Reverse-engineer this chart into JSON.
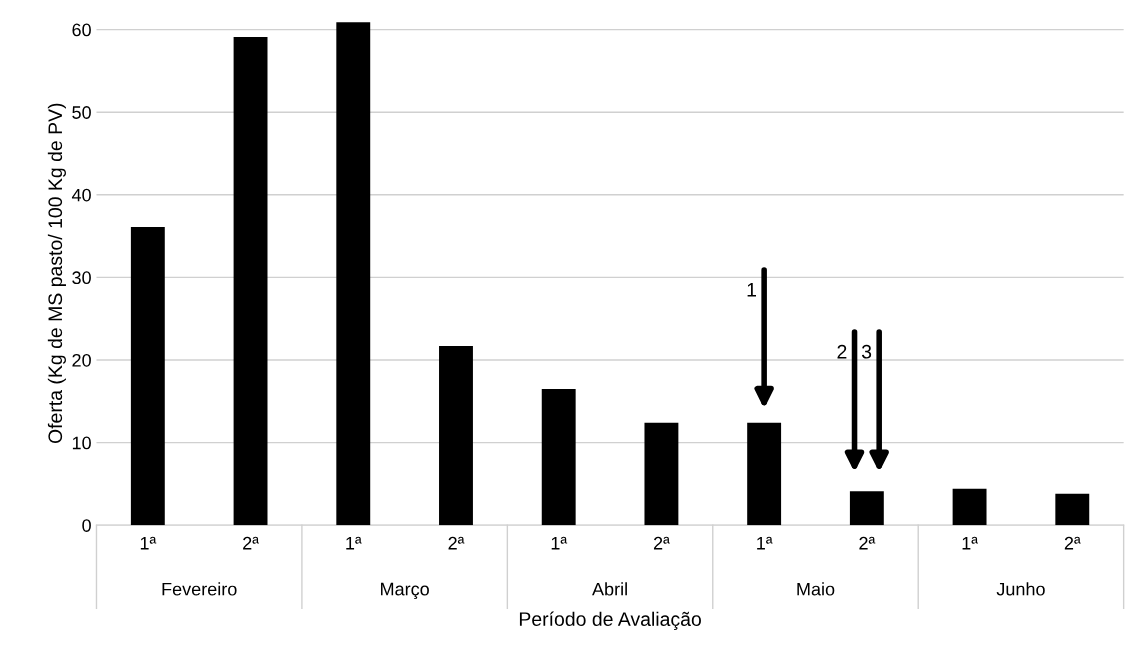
{
  "chart_data": {
    "type": "bar",
    "xlabel": "Período de Avaliação",
    "ylabel": "Oferta (Kg de MS pasto/ 100 Kg de PV)",
    "categories": [
      "1ª",
      "2ª",
      "1ª",
      "2ª",
      "1ª",
      "2ª",
      "1ª",
      "2ª",
      "1ª",
      "2ª"
    ],
    "values": [
      36.1,
      59.1,
      60.9,
      21.7,
      16.5,
      12.4,
      12.4,
      4.1,
      4.4,
      3.8
    ],
    "color": "#000000",
    "ylim": [
      0,
      61
    ],
    "yticks": [
      0,
      10,
      20,
      30,
      40,
      50,
      60
    ],
    "grid": "y",
    "annotations": [
      "Fevereiro",
      "Março",
      "Abril",
      "Maio",
      "Junho",
      "1",
      "2",
      "3"
    ]
  }
}
